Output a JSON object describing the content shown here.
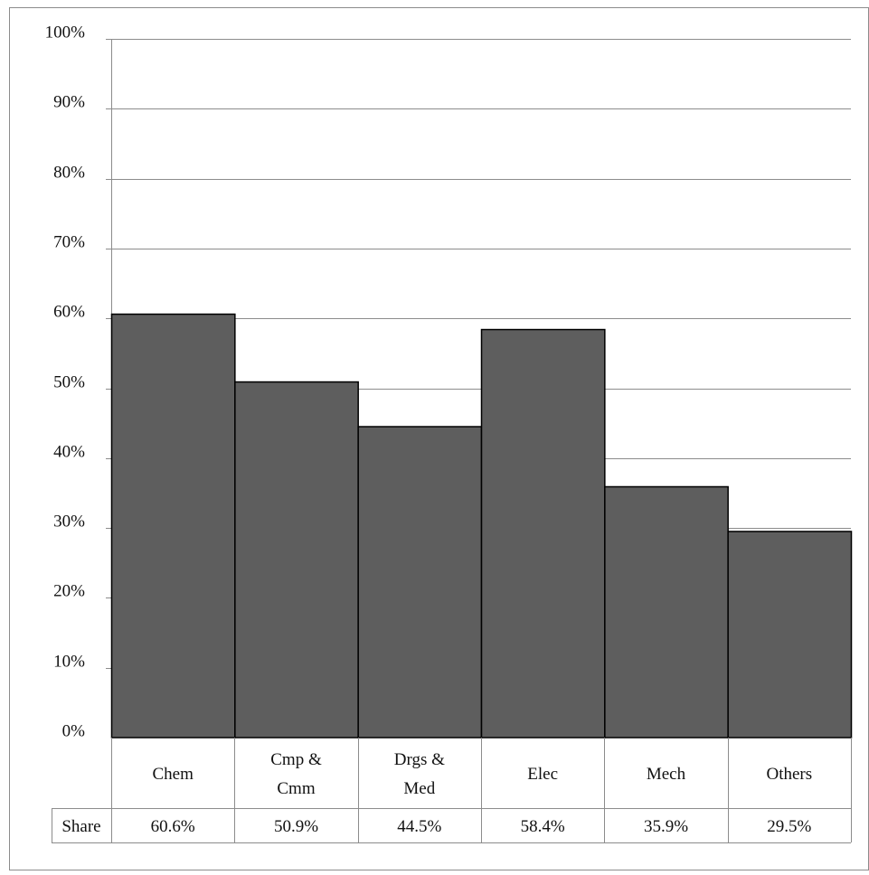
{
  "chart_data": {
    "type": "bar",
    "categories": [
      [
        "Chem"
      ],
      [
        "Cmp &",
        "Cmm"
      ],
      [
        "Drgs &",
        "Med"
      ],
      [
        "Elec"
      ],
      [
        "Mech"
      ],
      [
        "Others"
      ]
    ],
    "values": [
      60.6,
      50.9,
      44.5,
      58.4,
      35.9,
      29.5
    ],
    "ylim": [
      0,
      100
    ],
    "yticks": [
      "0%",
      "10%",
      "20%",
      "30%",
      "40%",
      "50%",
      "60%",
      "70%",
      "80%",
      "90%",
      "100%"
    ],
    "grid": true,
    "table": {
      "row_label": "Share",
      "values": [
        "60.6%",
        "50.9%",
        "44.5%",
        "58.4%",
        "35.9%",
        "29.5%"
      ]
    },
    "colors": {
      "bar": "#5e5e5e",
      "bar_stroke": "#000000",
      "grid": "#8c8c8c",
      "border": "#8c8c8c"
    }
  }
}
